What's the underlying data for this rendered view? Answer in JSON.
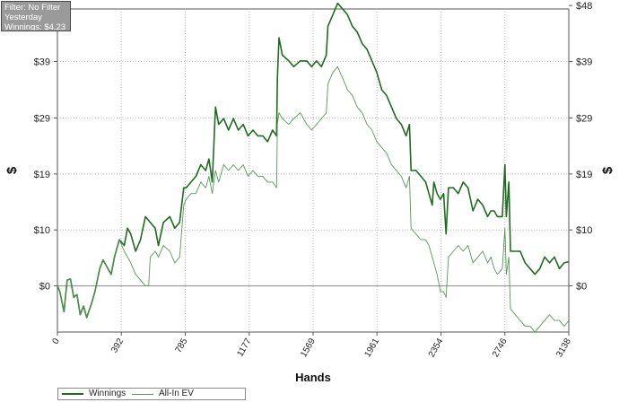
{
  "info": {
    "filter": "Filter: No Filter",
    "period": "Yesterday",
    "winnings": "Winnings: $4.23"
  },
  "chart_data": {
    "type": "line",
    "xlabel": "Hands",
    "ylabel": "$",
    "xlim": [
      0,
      3138
    ],
    "ylim": [
      -8,
      48
    ],
    "x_ticks": [
      "0",
      "392",
      "785",
      "1177",
      "1569",
      "1961",
      "2354",
      "2746",
      "3138"
    ],
    "x_tick_values": [
      0,
      392,
      785,
      1177,
      1569,
      1961,
      2354,
      2746,
      3138
    ],
    "y_ticks": [
      "$0",
      "$10",
      "$19",
      "$29",
      "$39",
      "$48"
    ],
    "y_tick_values": [
      0,
      9.7,
      19.4,
      29.1,
      38.9,
      48.6
    ],
    "grid": true,
    "legend_position": "bottom-left",
    "series": [
      {
        "name": "Winnings",
        "color": "#1f6b1f",
        "points": [
          [
            0,
            0
          ],
          [
            15,
            -1
          ],
          [
            40,
            -4.5
          ],
          [
            60,
            1
          ],
          [
            80,
            1.2
          ],
          [
            100,
            -2
          ],
          [
            120,
            -1.5
          ],
          [
            140,
            -5
          ],
          [
            160,
            -3.5
          ],
          [
            180,
            -5.5
          ],
          [
            210,
            -3
          ],
          [
            230,
            -1
          ],
          [
            260,
            3
          ],
          [
            280,
            4.5
          ],
          [
            300,
            3.5
          ],
          [
            330,
            2
          ],
          [
            350,
            5
          ],
          [
            380,
            8
          ],
          [
            410,
            7
          ],
          [
            430,
            10
          ],
          [
            450,
            9
          ],
          [
            480,
            6
          ],
          [
            510,
            8
          ],
          [
            540,
            12
          ],
          [
            570,
            11
          ],
          [
            600,
            10
          ],
          [
            620,
            7
          ],
          [
            650,
            11
          ],
          [
            690,
            12
          ],
          [
            720,
            10
          ],
          [
            750,
            11
          ],
          [
            775,
            17
          ],
          [
            790,
            17
          ],
          [
            820,
            18
          ],
          [
            850,
            19
          ],
          [
            880,
            21
          ],
          [
            910,
            20
          ],
          [
            930,
            22
          ],
          [
            950,
            18
          ],
          [
            970,
            31
          ],
          [
            990,
            28
          ],
          [
            1020,
            29
          ],
          [
            1050,
            27
          ],
          [
            1080,
            29
          ],
          [
            1110,
            27
          ],
          [
            1140,
            28
          ],
          [
            1170,
            26
          ],
          [
            1200,
            27
          ],
          [
            1230,
            26
          ],
          [
            1260,
            26
          ],
          [
            1290,
            25
          ],
          [
            1320,
            27
          ],
          [
            1345,
            26
          ],
          [
            1350,
            36
          ],
          [
            1360,
            43
          ],
          [
            1380,
            40
          ],
          [
            1420,
            39
          ],
          [
            1450,
            38
          ],
          [
            1490,
            39
          ],
          [
            1530,
            39
          ],
          [
            1560,
            38
          ],
          [
            1590,
            39
          ],
          [
            1620,
            38
          ],
          [
            1650,
            40
          ],
          [
            1660,
            45
          ],
          [
            1690,
            47
          ],
          [
            1720,
            49
          ],
          [
            1750,
            48
          ],
          [
            1780,
            47
          ],
          [
            1810,
            45
          ],
          [
            1840,
            44
          ],
          [
            1870,
            42
          ],
          [
            1900,
            41
          ],
          [
            1930,
            39
          ],
          [
            1960,
            37
          ],
          [
            1990,
            34
          ],
          [
            2020,
            33
          ],
          [
            2050,
            31
          ],
          [
            2080,
            29
          ],
          [
            2110,
            28
          ],
          [
            2140,
            26
          ],
          [
            2160,
            28
          ],
          [
            2170,
            20
          ],
          [
            2200,
            20
          ],
          [
            2230,
            19
          ],
          [
            2260,
            18
          ],
          [
            2280,
            16
          ],
          [
            2300,
            14
          ],
          [
            2310,
            18
          ],
          [
            2330,
            16
          ],
          [
            2350,
            15
          ],
          [
            2370,
            16
          ],
          [
            2385,
            9
          ],
          [
            2400,
            17
          ],
          [
            2430,
            17
          ],
          [
            2460,
            16
          ],
          [
            2490,
            18
          ],
          [
            2520,
            17
          ],
          [
            2550,
            13
          ],
          [
            2580,
            15
          ],
          [
            2610,
            14
          ],
          [
            2640,
            12
          ],
          [
            2660,
            13
          ],
          [
            2680,
            13
          ],
          [
            2700,
            12
          ],
          [
            2730,
            12
          ],
          [
            2746,
            21
          ],
          [
            2755,
            12
          ],
          [
            2770,
            18
          ],
          [
            2780,
            6
          ],
          [
            2810,
            6
          ],
          [
            2840,
            6
          ],
          [
            2870,
            4
          ],
          [
            2900,
            3
          ],
          [
            2930,
            2
          ],
          [
            2960,
            3
          ],
          [
            2990,
            5
          ],
          [
            3020,
            4
          ],
          [
            3050,
            5
          ],
          [
            3080,
            3
          ],
          [
            3110,
            4
          ],
          [
            3138,
            4.2
          ]
        ]
      },
      {
        "name": "All-In EV",
        "color": "#559955",
        "points": [
          [
            0,
            0
          ],
          [
            15,
            -1
          ],
          [
            40,
            -4.5
          ],
          [
            60,
            1
          ],
          [
            80,
            1.2
          ],
          [
            100,
            -2
          ],
          [
            120,
            -1.5
          ],
          [
            140,
            -5
          ],
          [
            160,
            -3.5
          ],
          [
            180,
            -5.5
          ],
          [
            210,
            -3
          ],
          [
            230,
            -1
          ],
          [
            260,
            3
          ],
          [
            280,
            4.5
          ],
          [
            300,
            3.5
          ],
          [
            330,
            2
          ],
          [
            350,
            5
          ],
          [
            380,
            8
          ],
          [
            410,
            6
          ],
          [
            430,
            5
          ],
          [
            450,
            4
          ],
          [
            480,
            2
          ],
          [
            510,
            1
          ],
          [
            540,
            0
          ],
          [
            560,
            0
          ],
          [
            570,
            5
          ],
          [
            600,
            6
          ],
          [
            620,
            5
          ],
          [
            650,
            7
          ],
          [
            690,
            6
          ],
          [
            720,
            4
          ],
          [
            750,
            5
          ],
          [
            775,
            14
          ],
          [
            790,
            15
          ],
          [
            820,
            16
          ],
          [
            850,
            16
          ],
          [
            880,
            18
          ],
          [
            910,
            17
          ],
          [
            930,
            19
          ],
          [
            950,
            16
          ],
          [
            970,
            20
          ],
          [
            990,
            18
          ],
          [
            1020,
            21
          ],
          [
            1050,
            20
          ],
          [
            1080,
            21
          ],
          [
            1110,
            20
          ],
          [
            1140,
            21
          ],
          [
            1170,
            19
          ],
          [
            1200,
            20
          ],
          [
            1230,
            19
          ],
          [
            1260,
            19
          ],
          [
            1290,
            18
          ],
          [
            1320,
            18
          ],
          [
            1345,
            17
          ],
          [
            1350,
            28
          ],
          [
            1360,
            30
          ],
          [
            1380,
            29
          ],
          [
            1420,
            28
          ],
          [
            1450,
            29
          ],
          [
            1490,
            30
          ],
          [
            1530,
            28
          ],
          [
            1560,
            27
          ],
          [
            1590,
            28
          ],
          [
            1620,
            29
          ],
          [
            1650,
            30
          ],
          [
            1660,
            35
          ],
          [
            1690,
            37
          ],
          [
            1720,
            38
          ],
          [
            1750,
            36
          ],
          [
            1780,
            34
          ],
          [
            1810,
            33
          ],
          [
            1840,
            31
          ],
          [
            1870,
            30
          ],
          [
            1900,
            28
          ],
          [
            1930,
            27
          ],
          [
            1960,
            25
          ],
          [
            1990,
            24
          ],
          [
            2020,
            23
          ],
          [
            2050,
            21
          ],
          [
            2080,
            20
          ],
          [
            2110,
            19
          ],
          [
            2140,
            17
          ],
          [
            2160,
            19
          ],
          [
            2170,
            10
          ],
          [
            2200,
            9
          ],
          [
            2230,
            8
          ],
          [
            2260,
            8
          ],
          [
            2280,
            7
          ],
          [
            2300,
            5
          ],
          [
            2310,
            4
          ],
          [
            2330,
            2
          ],
          [
            2350,
            -1
          ],
          [
            2370,
            -1
          ],
          [
            2385,
            -2
          ],
          [
            2400,
            5
          ],
          [
            2430,
            6
          ],
          [
            2460,
            7
          ],
          [
            2490,
            6
          ],
          [
            2520,
            7
          ],
          [
            2550,
            4
          ],
          [
            2580,
            5
          ],
          [
            2610,
            6
          ],
          [
            2640,
            4
          ],
          [
            2660,
            5
          ],
          [
            2680,
            3
          ],
          [
            2700,
            2
          ],
          [
            2730,
            3
          ],
          [
            2746,
            10
          ],
          [
            2755,
            2
          ],
          [
            2770,
            5
          ],
          [
            2780,
            -4
          ],
          [
            2810,
            -5
          ],
          [
            2840,
            -6
          ],
          [
            2870,
            -7
          ],
          [
            2900,
            -7
          ],
          [
            2930,
            -8
          ],
          [
            2960,
            -7
          ],
          [
            2990,
            -6
          ],
          [
            3020,
            -5
          ],
          [
            3050,
            -6
          ],
          [
            3080,
            -6
          ],
          [
            3110,
            -7
          ],
          [
            3138,
            -6
          ]
        ]
      }
    ]
  }
}
